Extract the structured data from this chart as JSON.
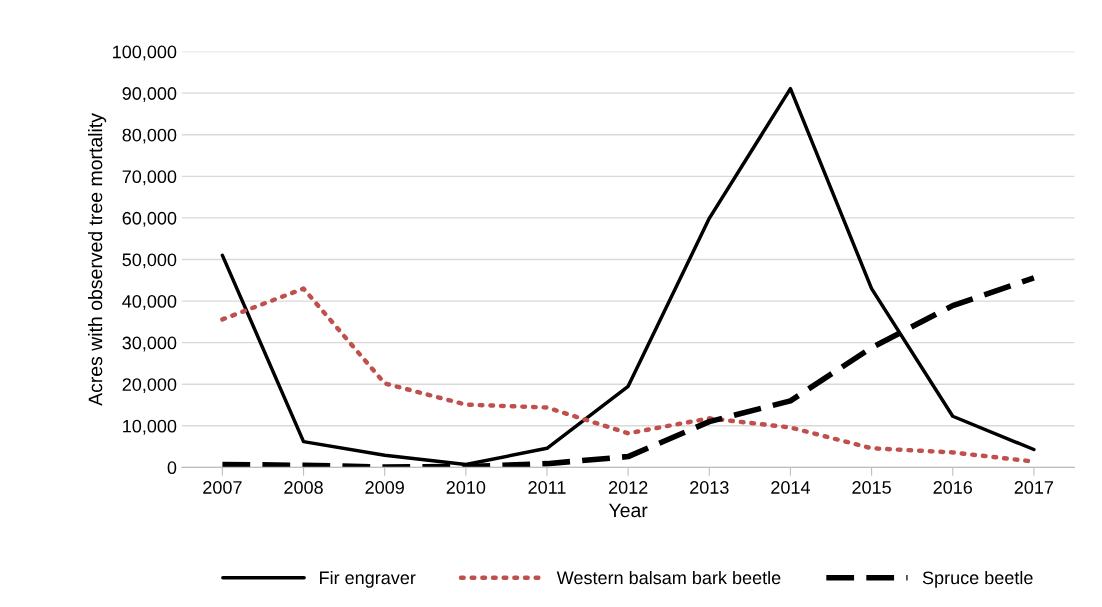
{
  "chart_data": {
    "type": "line",
    "xlabel": "Year",
    "ylabel": "Acres with observed tree mortality",
    "categories": [
      "2007",
      "2008",
      "2009",
      "2010",
      "2011",
      "2012",
      "2013",
      "2014",
      "2015",
      "2016",
      "2017"
    ],
    "series": [
      {
        "name": "Fir engraver",
        "color": "#000000",
        "line_style": "solid",
        "values": [
          51000,
          6200,
          2900,
          700,
          4600,
          19500,
          59900,
          91100,
          43000,
          12300,
          4300
        ]
      },
      {
        "name": "Western balsam bark beetle",
        "color": "#c0504d",
        "line_style": "dotted",
        "values": [
          35600,
          43000,
          20200,
          15100,
          14400,
          8200,
          11800,
          9600,
          4600,
          3600,
          1400
        ]
      },
      {
        "name": "Spruce beetle",
        "color": "#000000",
        "line_style": "dashed",
        "values": [
          700,
          500,
          100,
          200,
          900,
          2600,
          11000,
          16000,
          28800,
          38900,
          45600
        ]
      }
    ],
    "ylim": [
      0,
      100000
    ],
    "yticks": [
      {
        "value": 0,
        "label": "0"
      },
      {
        "value": 10000,
        "label": "10,000"
      },
      {
        "value": 20000,
        "label": "20,000"
      },
      {
        "value": 30000,
        "label": "30,000"
      },
      {
        "value": 40000,
        "label": "40,000"
      },
      {
        "value": 50000,
        "label": "50,000"
      },
      {
        "value": 60000,
        "label": "60,000"
      },
      {
        "value": 70000,
        "label": "70,000"
      },
      {
        "value": 80000,
        "label": "80,000"
      },
      {
        "value": 90000,
        "label": "90,000"
      },
      {
        "value": 100000,
        "label": "100,000"
      }
    ],
    "grid": "y",
    "legend": "bottom",
    "marker": "none"
  }
}
